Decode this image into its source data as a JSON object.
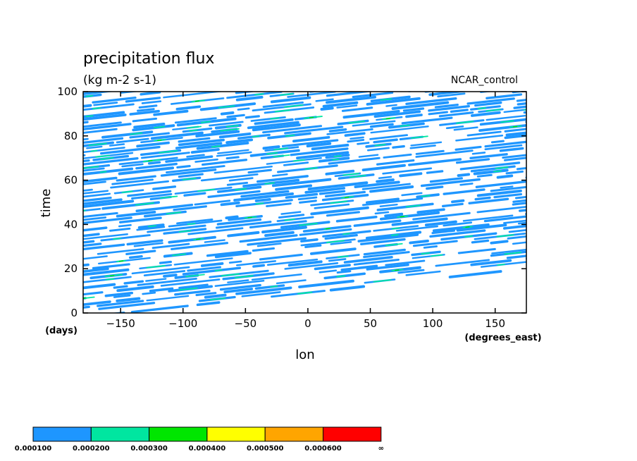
{
  "chart_data": {
    "type": "heatmap",
    "title": "precipitation flux",
    "units": "(kg m-2 s-1)",
    "dataset_label": "NCAR_control",
    "xlabel": "lon",
    "xunits": "(degrees_east)",
    "ylabel": "time",
    "yunits": "(days)",
    "xlim": [
      -180,
      175
    ],
    "ylim": [
      0,
      100
    ],
    "xticks": [
      -150,
      -100,
      -50,
      0,
      50,
      100,
      150
    ],
    "xtick_labels": [
      "−150",
      "−100",
      "−50",
      "0",
      "50",
      "100",
      "150"
    ],
    "yticks": [
      0,
      20,
      40,
      60,
      80,
      100
    ],
    "ytick_labels": [
      "0",
      "20",
      "40",
      "60",
      "80",
      "100"
    ],
    "colorbar": {
      "levels": [
        0.0001,
        0.0002,
        0.0003,
        0.0004,
        0.0005,
        0.0006
      ],
      "labels": [
        "0.000100",
        "0.000200",
        "0.000300",
        "0.000400",
        "0.000500",
        "0.000600",
        "∞"
      ],
      "colors": [
        "#1e96ff",
        "#00e6a0",
        "#00e600",
        "#ffff00",
        "#ffa500",
        "#ff0000"
      ]
    },
    "background_color": "#ffffff"
  }
}
